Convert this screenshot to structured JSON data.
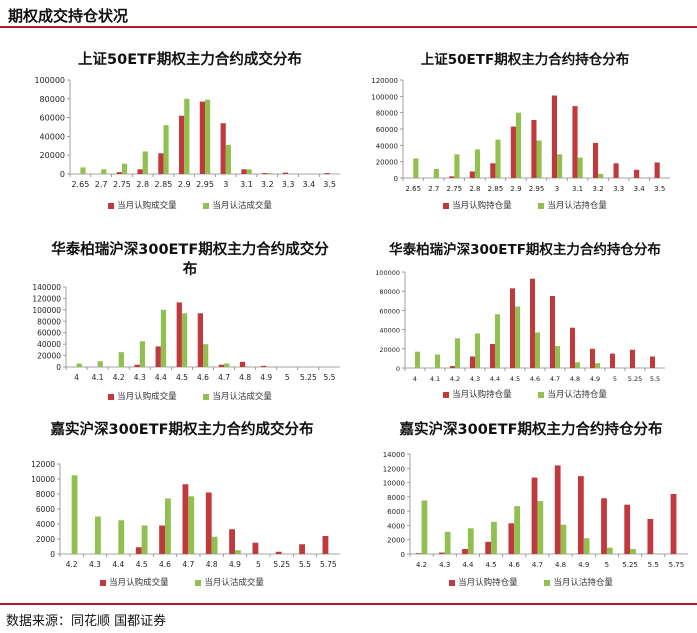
{
  "header": {
    "title": "期权成交持仓状况"
  },
  "footer": {
    "source": "数据来源：同花顺  国都证券"
  },
  "colors": {
    "call": "#c0393c",
    "put": "#92c050",
    "rule": "#b0192c"
  },
  "chart_data": [
    {
      "type": "bar",
      "title": "上证50ETF期权主力合约成交分布",
      "categories": [
        "2.65",
        "2.7",
        "2.75",
        "2.8",
        "2.85",
        "2.9",
        "2.95",
        "3",
        "3.1",
        "3.2",
        "3.3",
        "3.4",
        "3.5"
      ],
      "series": [
        {
          "name": "当月认购成交量",
          "values": [
            0,
            0,
            2000,
            5000,
            22000,
            62000,
            77000,
            54000,
            5000,
            1000,
            1500,
            0,
            1000
          ]
        },
        {
          "name": "当月认沽成交量",
          "values": [
            7000,
            5000,
            11000,
            24000,
            52000,
            80000,
            79000,
            31000,
            5000,
            1000,
            0,
            0,
            0
          ]
        }
      ],
      "yticks": [
        0,
        20000,
        40000,
        60000,
        80000,
        100000
      ],
      "ylim": [
        0,
        100000
      ]
    },
    {
      "type": "bar",
      "title": "上证50ETF期权主力合约持仓分布",
      "categories": [
        "2.65",
        "2.7",
        "2.75",
        "2.8",
        "2.85",
        "2.9",
        "2.95",
        "3",
        "3.1",
        "3.2",
        "3.3",
        "3.4",
        "3.5"
      ],
      "series": [
        {
          "name": "当月认购持仓量",
          "values": [
            0,
            0,
            2000,
            8000,
            18000,
            63000,
            71000,
            101000,
            88000,
            43000,
            18000,
            10000,
            19000
          ]
        },
        {
          "name": "当月认沽持仓量",
          "values": [
            24000,
            11000,
            29000,
            35000,
            47000,
            80000,
            46000,
            29000,
            25000,
            5000,
            0,
            0,
            0
          ]
        }
      ],
      "yticks": [
        0,
        20000,
        40000,
        60000,
        80000,
        100000,
        120000
      ],
      "ylim": [
        0,
        120000
      ]
    },
    {
      "type": "bar",
      "title": "华泰柏瑞沪深300ETF期权主力合约成交分布",
      "categories": [
        "4",
        "4.1",
        "4.2",
        "4.3",
        "4.4",
        "4.5",
        "4.6",
        "4.7",
        "4.8",
        "4.9",
        "5",
        "5.25",
        "5.5"
      ],
      "series": [
        {
          "name": "当月认购成交量",
          "values": [
            0,
            0,
            0,
            4000,
            36000,
            113000,
            94000,
            4000,
            9000,
            2000,
            0,
            0,
            0
          ]
        },
        {
          "name": "当月认沽成交量",
          "values": [
            6000,
            10000,
            26000,
            45000,
            100000,
            94000,
            40000,
            6000,
            1000,
            0,
            0,
            0,
            0
          ]
        }
      ],
      "yticks": [
        0,
        20000,
        40000,
        60000,
        80000,
        100000,
        120000,
        140000
      ],
      "ylim": [
        0,
        140000
      ]
    },
    {
      "type": "bar",
      "title": "华泰柏瑞沪深300ETF期权主力合约持仓分布",
      "categories": [
        "4",
        "4.1",
        "4.2",
        "4.3",
        "4.4",
        "4.5",
        "4.6",
        "4.7",
        "4.8",
        "4.9",
        "5",
        "5.25",
        "5.5"
      ],
      "series": [
        {
          "name": "当月认购持仓量",
          "values": [
            0,
            0,
            2000,
            12000,
            25000,
            83000,
            93000,
            75000,
            42000,
            20000,
            15000,
            19000,
            12000
          ]
        },
        {
          "name": "当月认沽持仓量",
          "values": [
            17000,
            14000,
            31000,
            36000,
            56000,
            64000,
            37000,
            23000,
            6000,
            5000,
            0,
            0,
            0
          ]
        }
      ],
      "yticks": [
        0,
        20000,
        40000,
        60000,
        80000,
        100000
      ],
      "ylim": [
        0,
        100000
      ]
    },
    {
      "type": "bar",
      "title": "嘉实沪深300ETF期权主力合约成交分布",
      "categories": [
        "4.2",
        "4.3",
        "4.4",
        "4.5",
        "4.6",
        "4.7",
        "4.8",
        "4.9",
        "5",
        "5.25",
        "5.5",
        "5.75"
      ],
      "series": [
        {
          "name": "当月认购成交量",
          "values": [
            0,
            0,
            0,
            900,
            3800,
            9300,
            8200,
            3300,
            1500,
            300,
            1300,
            2400
          ]
        },
        {
          "name": "当月认沽成交量",
          "values": [
            10500,
            5000,
            4500,
            3800,
            7400,
            7700,
            2300,
            500,
            0,
            0,
            0,
            0
          ]
        }
      ],
      "yticks": [
        0,
        2000,
        4000,
        6000,
        8000,
        10000,
        12000
      ],
      "ylim": [
        0,
        12000
      ]
    },
    {
      "type": "bar",
      "title": "嘉实沪深300ETF期权主力合约持仓分布",
      "categories": [
        "4.2",
        "4.3",
        "4.4",
        "4.5",
        "4.6",
        "4.7",
        "4.8",
        "4.9",
        "5",
        "5.25",
        "5.5",
        "5.75"
      ],
      "series": [
        {
          "name": "当月认购持仓量",
          "values": [
            100,
            200,
            700,
            1700,
            4300,
            10700,
            12400,
            10900,
            7800,
            6900,
            4900,
            8400
          ]
        },
        {
          "name": "当月认沽持仓量",
          "values": [
            7500,
            3100,
            3600,
            4500,
            6700,
            7400,
            4100,
            2200,
            900,
            700,
            0,
            0
          ]
        }
      ],
      "yticks": [
        0,
        2000,
        4000,
        6000,
        8000,
        10000,
        12000,
        14000
      ],
      "ylim": [
        0,
        14000
      ]
    }
  ]
}
